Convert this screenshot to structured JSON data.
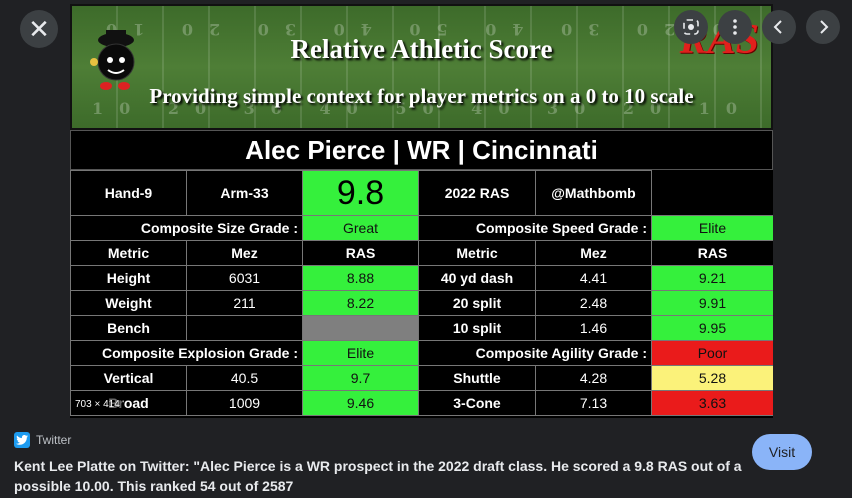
{
  "viewer": {
    "close_glyph": "✕",
    "image_dimensions": "703 × 414",
    "icons": [
      "close-icon",
      "lens-icon",
      "more-vert-icon",
      "chevron-left-icon",
      "chevron-right-icon"
    ]
  },
  "banner": {
    "title": "Relative Athletic Score",
    "subtitle": "Providing simple context for player metrics on a 0 to 10 scale",
    "logo": "RAS",
    "yard_top": "10 20 30 40 50 40 30 20 10",
    "yard_bottom": "10 20 30 40 50 40 30 20 10"
  },
  "player": {
    "headline": "Alec Pierce | WR | Cincinnati",
    "hand": "Hand-9",
    "arm": "Arm-33",
    "score": "9.8",
    "ras_label": "2022 RAS",
    "handle": "@Mathbomb"
  },
  "grades": {
    "size_label": "Composite Size Grade :",
    "size_value": "Great",
    "speed_label": "Composite Speed Grade :",
    "speed_value": "Elite",
    "explosion_label": "Composite Explosion Grade :",
    "explosion_value": "Elite",
    "agility_label": "Composite Agility Grade :",
    "agility_value": "Poor"
  },
  "headers": {
    "metric": "Metric",
    "mez": "Mez",
    "ras": "RAS"
  },
  "size_rows": [
    {
      "metric": "Height",
      "mez": "6031",
      "ras": "8.88"
    },
    {
      "metric": "Weight",
      "mez": "211",
      "ras": "8.22"
    },
    {
      "metric": "Bench",
      "mez": "",
      "ras": ""
    }
  ],
  "speed_rows": [
    {
      "metric": "40 yd dash",
      "mez": "4.41",
      "ras": "9.21"
    },
    {
      "metric": "20 split",
      "mez": "2.48",
      "ras": "9.91"
    },
    {
      "metric": "10 split",
      "mez": "1.46",
      "ras": "9.95"
    }
  ],
  "explosion_rows": [
    {
      "metric": "Vertical",
      "mez": "40.5",
      "ras": "9.7"
    },
    {
      "metric": "Broad",
      "mez": "1009",
      "ras": "9.46"
    }
  ],
  "agility_rows": [
    {
      "metric": "Shuttle",
      "mez": "4.28",
      "ras": "5.28"
    },
    {
      "metric": "3-Cone",
      "mez": "7.13",
      "ras": "3.63"
    }
  ],
  "colors": {
    "elite_green": "#35f03c",
    "poor_red": "#ea1b1b",
    "average_yellow": "#fbf27a",
    "empty_gray": "#7f7f7f",
    "visit_blue": "#8ab4f8"
  },
  "source": {
    "site": "Twitter",
    "caption": "Kent Lee Platte on Twitter: \"Alec Pierce is a WR prospect in the 2022 draft class. He scored a 9.8 RAS out of a possible 10.00. This ranked 54 out of 2587",
    "visit_label": "Visit"
  }
}
